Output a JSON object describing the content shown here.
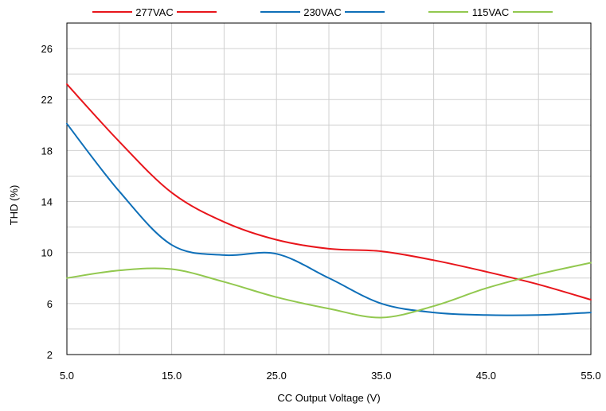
{
  "chart_data": {
    "type": "line",
    "title": "",
    "xlabel": "CC Output Voltage (V)",
    "ylabel": "THD (%)",
    "xlim": [
      5,
      55
    ],
    "ylim": [
      2,
      28
    ],
    "x_ticks": [
      "5.0",
      "15.0",
      "25.0",
      "35.0",
      "45.0",
      "55.0"
    ],
    "y_ticks": [
      "2",
      "6",
      "10",
      "14",
      "18",
      "22",
      "26"
    ],
    "grid": true,
    "legend_position": "top",
    "series": [
      {
        "name": "277VAC",
        "color": "#e8151b",
        "x": [
          5,
          10,
          15,
          20,
          25,
          30,
          35,
          40,
          45,
          50,
          55
        ],
        "y": [
          23.2,
          18.7,
          14.7,
          12.4,
          11.0,
          10.3,
          10.1,
          9.4,
          8.5,
          7.5,
          6.3
        ]
      },
      {
        "name": "230VAC",
        "color": "#0e6fb8",
        "x": [
          5,
          10,
          15,
          20,
          25,
          30,
          35,
          40,
          45,
          50,
          55
        ],
        "y": [
          20.1,
          14.8,
          10.6,
          9.8,
          9.9,
          8.0,
          6.0,
          5.3,
          5.1,
          5.1,
          5.3
        ]
      },
      {
        "name": "115VAC",
        "color": "#92c84f",
        "x": [
          5,
          10,
          15,
          20,
          25,
          30,
          35,
          40,
          45,
          50,
          55
        ],
        "y": [
          8.0,
          8.6,
          8.7,
          7.7,
          6.5,
          5.6,
          4.9,
          5.8,
          7.2,
          8.3,
          9.2
        ]
      }
    ]
  }
}
